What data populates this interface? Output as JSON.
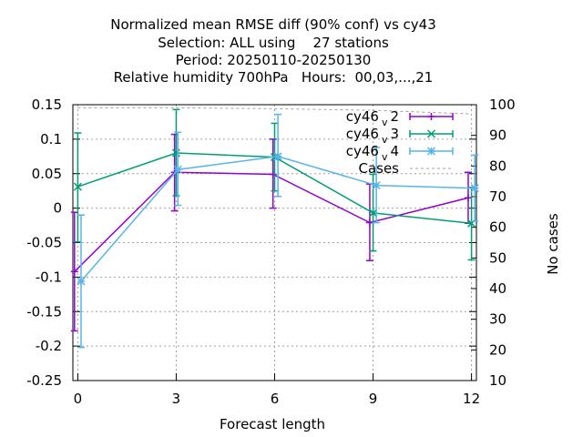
{
  "chart_data": {
    "type": "line",
    "title": [
      "Normalized mean RMSE diff (90% conf) vs cy43",
      "Selection: ALL using    27 stations",
      "Period: 20250110-20250130",
      "Relative humidity 700hPa   Hours:  00,03,...,21"
    ],
    "xlabel": "Forecast length",
    "ylabel": "",
    "y2label": "No cases",
    "xlim": [
      -0.15,
      12.15
    ],
    "ylim": [
      -0.25,
      0.15
    ],
    "y2lim": [
      10,
      100
    ],
    "xticks": [
      0,
      3,
      6,
      9,
      12
    ],
    "yticks": [
      -0.25,
      -0.2,
      -0.15,
      -0.1,
      -0.05,
      0,
      0.05,
      0.1,
      0.15
    ],
    "ytick_labels": [
      "-0.25",
      "-0.2",
      "-0.15",
      "-0.1",
      "-0.05",
      "0",
      "0.05",
      "0.1",
      "0.15"
    ],
    "y2ticks": [
      10,
      20,
      30,
      40,
      50,
      60,
      70,
      80,
      90,
      100
    ],
    "grid": true,
    "legend_position": "top-right",
    "series": [
      {
        "name": "cy46",
        "subscript": "v",
        "suffix": "2",
        "color": "#9400d3",
        "marker": "plus",
        "x": [
          -0.1,
          2.95,
          5.95,
          8.9,
          11.9
        ],
        "y": [
          -0.092,
          0.052,
          0.049,
          -0.021,
          0.015
        ],
        "err_low": [
          -0.178,
          -0.004,
          0.0,
          -0.076,
          -0.022
        ],
        "err_high": [
          -0.006,
          0.107,
          0.1,
          0.035,
          0.052
        ]
      },
      {
        "name": "cy46",
        "subscript": "v",
        "suffix": "3",
        "color": "#009e73",
        "marker": "cross",
        "x": [
          0.0,
          3.0,
          6.0,
          9.0,
          12.0
        ],
        "y": [
          0.031,
          0.08,
          0.074,
          -0.007,
          -0.022
        ],
        "err_low": [
          -0.049,
          0.018,
          0.025,
          -0.062,
          -0.075
        ],
        "err_high": [
          0.109,
          0.143,
          0.123,
          0.049,
          0.03
        ]
      },
      {
        "name": "cy46",
        "subscript": "v",
        "suffix": "4",
        "color": "#56b4e9",
        "marker": "star",
        "x": [
          0.1,
          3.05,
          6.1,
          9.1,
          12.1
        ],
        "y": [
          -0.106,
          0.056,
          0.075,
          0.033,
          0.029
        ],
        "err_low": [
          -0.202,
          0.004,
          0.017,
          -0.021,
          -0.019
        ],
        "err_high": [
          -0.01,
          0.11,
          0.136,
          0.088,
          0.077
        ]
      },
      {
        "name": "Cases",
        "color": "#a0a0a0",
        "dashed": true,
        "axis": "y2",
        "x": [
          0,
          3,
          6,
          9,
          12
        ],
        "y": [
          99,
          99,
          98.7,
          98.2,
          97
        ]
      }
    ]
  }
}
